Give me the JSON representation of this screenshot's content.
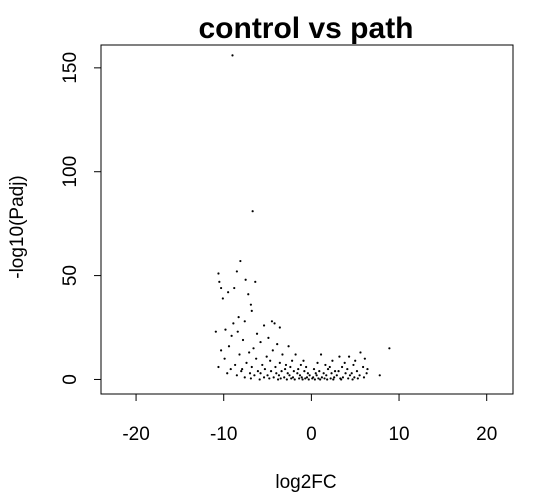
{
  "chart_data": {
    "type": "scatter",
    "title": "control vs path",
    "xlabel": "log2FC",
    "ylabel": "-log10(Padj)",
    "xlim": [
      -24,
      23
    ],
    "ylim": [
      -7,
      161
    ],
    "xticks": [
      -20,
      -10,
      0,
      10,
      20
    ],
    "xtick_labels": [
      "-20",
      "-10",
      "0",
      "10",
      "20"
    ],
    "yticks": [
      0,
      50,
      100,
      150
    ],
    "ytick_labels": [
      "0",
      "50",
      "100",
      "150"
    ],
    "grid": false,
    "legend": null,
    "point_color": "#000000",
    "series": [
      {
        "points": [
          [
            -9.0,
            156
          ],
          [
            -6.7,
            81
          ],
          [
            -8.1,
            57
          ],
          [
            -8.5,
            52
          ],
          [
            -10.6,
            51
          ],
          [
            -10.5,
            47
          ],
          [
            -7.5,
            48
          ],
          [
            -6.4,
            47
          ],
          [
            -10.3,
            44
          ],
          [
            -8.8,
            44
          ],
          [
            -9.5,
            42
          ],
          [
            -7.2,
            41
          ],
          [
            -10.1,
            39
          ],
          [
            -6.9,
            36
          ],
          [
            -6.8,
            33
          ],
          [
            -8.3,
            30
          ],
          [
            -7.6,
            28
          ],
          [
            -4.5,
            28
          ],
          [
            -4.2,
            27
          ],
          [
            -8.9,
            27
          ],
          [
            -5.4,
            26
          ],
          [
            -3.6,
            25
          ],
          [
            -9.8,
            24
          ],
          [
            -8.4,
            23
          ],
          [
            -10.9,
            23
          ],
          [
            -6.2,
            22
          ],
          [
            -9.1,
            21
          ],
          [
            -4.9,
            20
          ],
          [
            -7.8,
            19
          ],
          [
            -5.8,
            18
          ],
          [
            -3.9,
            17
          ],
          [
            -2.6,
            16
          ],
          [
            -9.4,
            16
          ],
          [
            -6.6,
            15
          ],
          [
            8.9,
            15
          ],
          [
            -10.3,
            14
          ],
          [
            -4.4,
            14
          ],
          [
            -7.1,
            13
          ],
          [
            5.6,
            13
          ],
          [
            -1.8,
            12
          ],
          [
            -3.3,
            12
          ],
          [
            -8.2,
            12
          ],
          [
            1.1,
            12
          ],
          [
            -5.1,
            11
          ],
          [
            4.3,
            11
          ],
          [
            3.2,
            11
          ],
          [
            -6.3,
            10
          ],
          [
            -9.9,
            10
          ],
          [
            6.1,
            10
          ],
          [
            -2.2,
            9
          ],
          [
            -4.7,
            9
          ],
          [
            -0.9,
            9
          ],
          [
            2.4,
            9
          ],
          [
            5.0,
            9
          ],
          [
            -7.4,
            8
          ],
          [
            -3.6,
            8
          ],
          [
            0.7,
            8
          ],
          [
            3.8,
            8
          ],
          [
            -8.7,
            7
          ],
          [
            -5.6,
            7
          ],
          [
            -2.9,
            7
          ],
          [
            -1.2,
            7
          ],
          [
            1.6,
            7
          ],
          [
            4.8,
            7
          ],
          [
            -10.6,
            6
          ],
          [
            -6.8,
            6
          ],
          [
            -4.1,
            6
          ],
          [
            -2.4,
            6
          ],
          [
            -0.6,
            6
          ],
          [
            2.1,
            6
          ],
          [
            3.5,
            6
          ],
          [
            5.9,
            6
          ],
          [
            -9.2,
            5
          ],
          [
            -7.9,
            5
          ],
          [
            -5.3,
            5
          ],
          [
            -3.0,
            5
          ],
          [
            -1.5,
            5
          ],
          [
            0.3,
            5
          ],
          [
            1.9,
            5
          ],
          [
            4.1,
            5
          ],
          [
            6.4,
            5
          ],
          [
            -8.0,
            4
          ],
          [
            -6.1,
            4
          ],
          [
            -4.6,
            4
          ],
          [
            -3.4,
            4
          ],
          [
            -2.0,
            4
          ],
          [
            -0.8,
            4
          ],
          [
            0.9,
            4
          ],
          [
            2.7,
            4
          ],
          [
            3.1,
            4
          ],
          [
            5.2,
            4
          ],
          [
            -9.6,
            3
          ],
          [
            -7.0,
            3
          ],
          [
            -5.8,
            3
          ],
          [
            -4.0,
            3
          ],
          [
            -2.7,
            3
          ],
          [
            -1.6,
            3
          ],
          [
            -0.4,
            3
          ],
          [
            0.5,
            3
          ],
          [
            1.4,
            3
          ],
          [
            2.3,
            3
          ],
          [
            3.9,
            3
          ],
          [
            4.6,
            3
          ],
          [
            6.3,
            3
          ],
          [
            -8.5,
            2
          ],
          [
            -6.5,
            2
          ],
          [
            -5.0,
            2
          ],
          [
            -3.7,
            2
          ],
          [
            -2.5,
            2
          ],
          [
            -1.3,
            2
          ],
          [
            -0.2,
            2
          ],
          [
            0.6,
            2
          ],
          [
            1.7,
            2
          ],
          [
            2.9,
            2
          ],
          [
            4.4,
            2
          ],
          [
            5.5,
            2
          ],
          [
            7.8,
            2
          ],
          [
            -7.6,
            1
          ],
          [
            -5.4,
            1
          ],
          [
            -4.3,
            1
          ],
          [
            -3.1,
            1
          ],
          [
            -2.1,
            1
          ],
          [
            -1.1,
            1
          ],
          [
            -0.5,
            1
          ],
          [
            0.2,
            1
          ],
          [
            1.2,
            1
          ],
          [
            2.6,
            1
          ],
          [
            3.6,
            1
          ],
          [
            4.9,
            1
          ],
          [
            6.0,
            1
          ],
          [
            -6.9,
            0.5
          ],
          [
            -4.8,
            0.5
          ],
          [
            -3.5,
            0.5
          ],
          [
            -2.3,
            0.5
          ],
          [
            -1.4,
            0.5
          ],
          [
            -0.7,
            0.5
          ],
          [
            0.1,
            0.5
          ],
          [
            0.8,
            0.5
          ],
          [
            1.5,
            0.5
          ],
          [
            2.2,
            0.5
          ],
          [
            3.3,
            0.5
          ],
          [
            4.2,
            0.5
          ],
          [
            5.3,
            0.5
          ],
          [
            -5.9,
            0
          ],
          [
            -3.8,
            0
          ],
          [
            -2.8,
            0
          ],
          [
            -1.9,
            0
          ],
          [
            -1.0,
            0
          ],
          [
            -0.3,
            0
          ],
          [
            0.4,
            0
          ],
          [
            1.0,
            0
          ],
          [
            1.8,
            0
          ],
          [
            2.5,
            0
          ],
          [
            3.4,
            0
          ],
          [
            4.7,
            0
          ]
        ]
      }
    ]
  }
}
